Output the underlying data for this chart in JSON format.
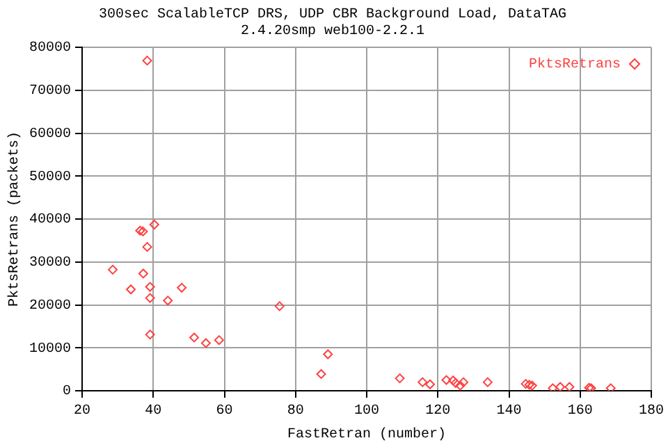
{
  "chart_data": {
    "type": "scatter",
    "title": "300sec ScalableTCP DRS, UDP CBR Background Load, DataTAG",
    "subtitle": "2.4.20smp web100-2.2.1",
    "xlabel": "FastRetran (number)",
    "ylabel": "PktsRetrans (packets)",
    "xlim": [
      20,
      180
    ],
    "xticks": [
      20,
      40,
      60,
      80,
      100,
      120,
      140,
      160,
      180
    ],
    "ylim": [
      0,
      80000
    ],
    "yticks": [
      0,
      10000,
      20000,
      30000,
      40000,
      50000,
      60000,
      70000,
      80000
    ],
    "grid": true,
    "legend": "top right",
    "marker": "diamond",
    "series": [
      {
        "name": "PktsRetrans",
        "color": "#ff4040",
        "x": [
          38.3,
          36.3,
          37.1,
          40.3,
          38.3,
          28.6,
          37.2,
          33.7,
          39.1,
          48,
          39.1,
          44.1,
          39.1,
          51.5,
          54.8,
          58.5,
          75.5,
          89.1,
          87.2,
          109.3,
          115.7,
          117.8,
          122.4,
          124.3,
          125,
          126.3,
          127.2,
          134,
          144.7,
          145.7,
          146.5,
          152.3,
          154.4,
          157,
          162.5,
          163.1,
          168.6
        ],
        "values": [
          76900,
          37300,
          37100,
          38700,
          33500,
          28200,
          27300,
          23600,
          24200,
          24000,
          21600,
          21000,
          13100,
          12400,
          11100,
          11800,
          19700,
          8500,
          3900,
          2900,
          2000,
          1500,
          2500,
          2400,
          1800,
          1200,
          2000,
          2000,
          1600,
          1400,
          1200,
          600,
          900,
          900,
          700,
          600,
          600
        ]
      }
    ]
  }
}
